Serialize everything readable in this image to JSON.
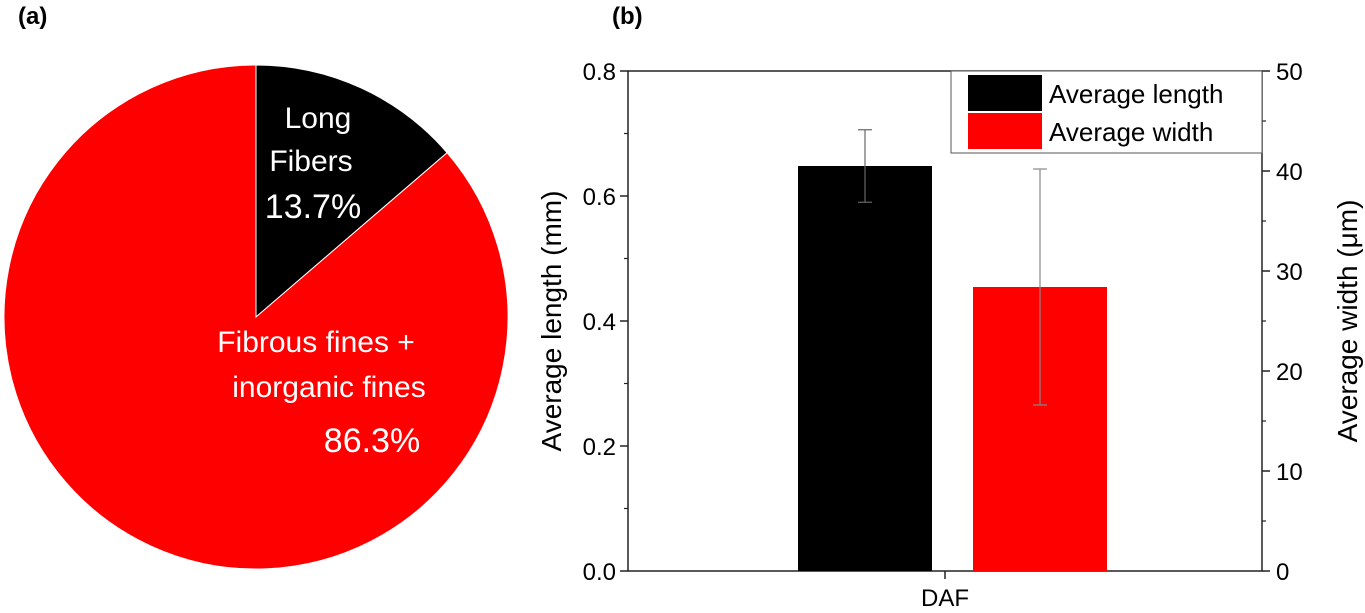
{
  "panels": {
    "a_label": "(a)",
    "b_label": "(b)"
  },
  "chart_data": [
    {
      "type": "pie",
      "panel": "(a)",
      "slices": [
        {
          "name": "Long Fibers",
          "label_lines": [
            "Long",
            "Fibers"
          ],
          "percent_label": "13.7%",
          "value": 13.7,
          "color": "#000000"
        },
        {
          "name": "Fibrous fines + inorganic fines",
          "label_lines": [
            "Fibrous fines +",
            "inorganic fines"
          ],
          "percent_label": "86.3%",
          "value": 86.3,
          "color": "#ff0000"
        }
      ],
      "start": "12 o'clock, clockwise"
    },
    {
      "type": "bar",
      "panel": "(b)",
      "categories": [
        "DAF"
      ],
      "series": [
        {
          "name": "Average length",
          "axis": "left",
          "color": "#000000",
          "values": [
            0.648
          ],
          "error": [
            0.058
          ]
        },
        {
          "name": "Average width",
          "axis": "right",
          "color": "#ff0000",
          "values": [
            28.4
          ],
          "error": [
            11.8
          ]
        }
      ],
      "ylabel": "Average length (mm)",
      "ylim": [
        0,
        0.8
      ],
      "yticks": [
        "0.0",
        "0.2",
        "0.4",
        "0.6",
        "0.8"
      ],
      "y2label": "Average width (μm)",
      "y2lim": [
        0,
        50
      ],
      "y2ticks": [
        "0",
        "10",
        "20",
        "30",
        "40",
        "50"
      ],
      "legend_position": "top-right",
      "grid": false
    }
  ]
}
